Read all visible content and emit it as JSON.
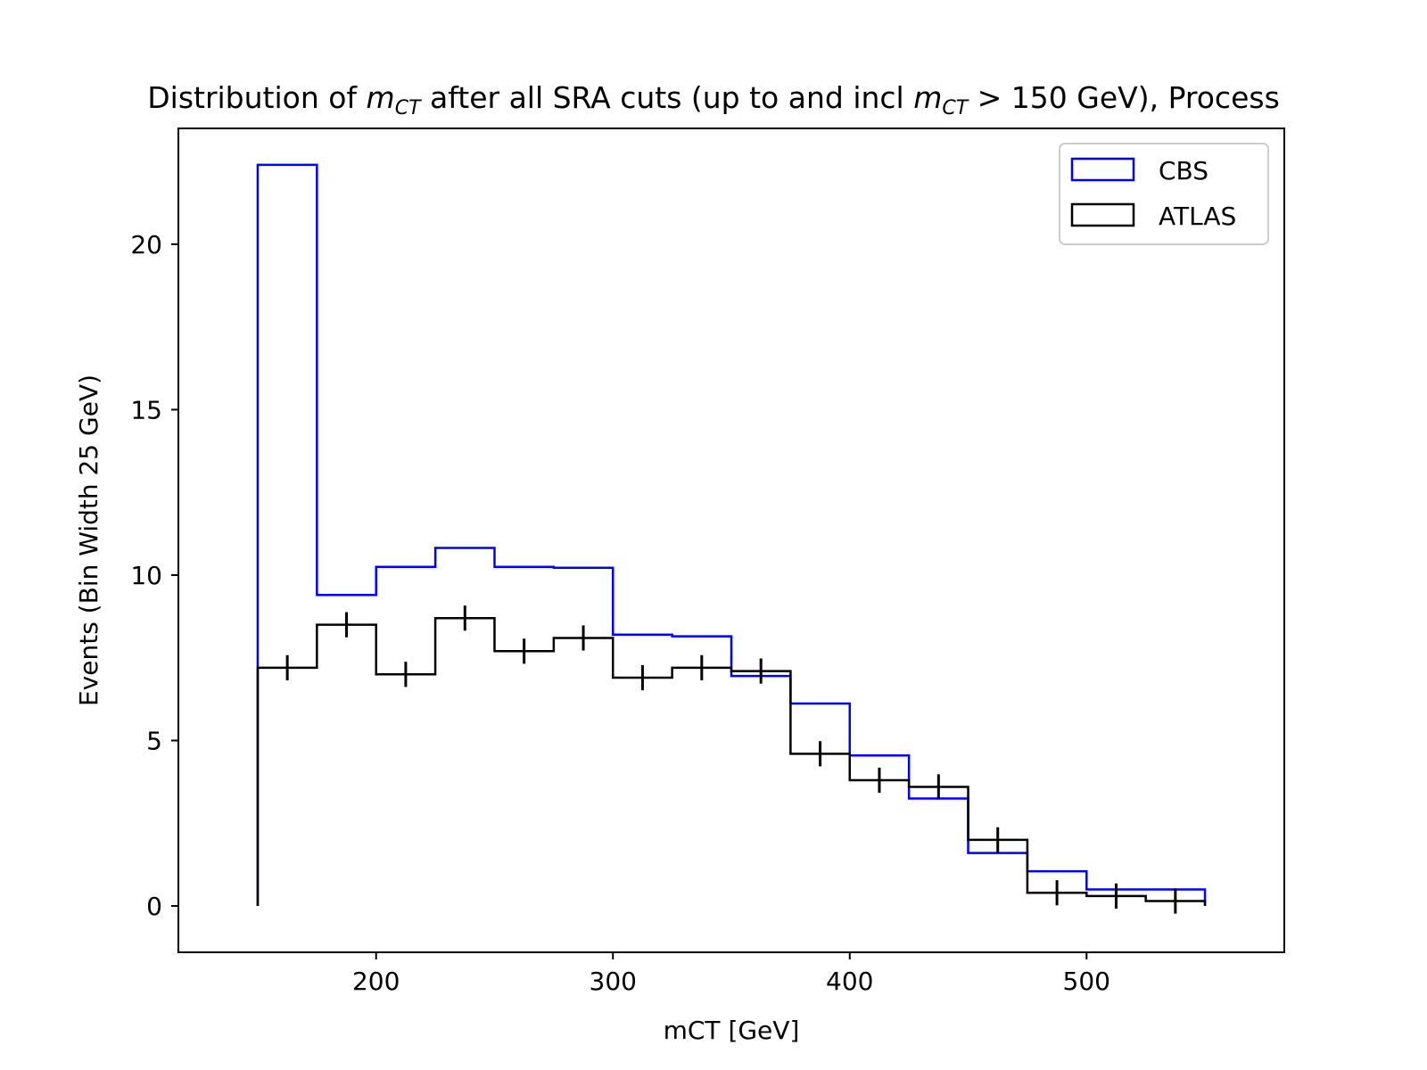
{
  "chart_data": {
    "type": "histogram",
    "title_parts": {
      "pre": "Distribution of ",
      "var1_main": "m",
      "var1_sub": "CT",
      "mid": " after all SRA cuts (up to and incl ",
      "var2_main": "m",
      "var2_sub": "CT",
      "post": " > 150 GeV), Process"
    },
    "xlabel": "mCT [GeV]",
    "ylabel": "Events (Bin Width 25 GeV)",
    "xlim": [
      116.5,
      583.5
    ],
    "ylim": [
      -1.4,
      23.5
    ],
    "xticks": [
      200,
      300,
      400,
      500
    ],
    "yticks": [
      0,
      5,
      10,
      15,
      20
    ],
    "bin_edges": [
      150,
      175,
      200,
      225,
      250,
      275,
      300,
      325,
      350,
      375,
      400,
      425,
      450,
      475,
      500,
      525,
      550
    ],
    "legend_position": "top-right",
    "series": [
      {
        "name": "CBS",
        "color": "#0000ff",
        "values": [
          22.4,
          9.4,
          10.25,
          10.82,
          10.25,
          10.22,
          8.2,
          8.15,
          6.95,
          6.12,
          4.55,
          3.25,
          1.6,
          1.05,
          0.5,
          0.5
        ],
        "errors": null
      },
      {
        "name": "ATLAS",
        "color": "#000000",
        "values": [
          7.2,
          8.5,
          7.0,
          8.7,
          7.7,
          8.1,
          6.9,
          7.2,
          7.1,
          4.6,
          3.8,
          3.6,
          2.0,
          0.4,
          0.3,
          0.15
        ],
        "errors": [
          0.38,
          0.38,
          0.38,
          0.38,
          0.38,
          0.38,
          0.38,
          0.38,
          0.38,
          0.38,
          0.38,
          0.38,
          0.38,
          0.38,
          0.38,
          0.38
        ]
      }
    ]
  }
}
